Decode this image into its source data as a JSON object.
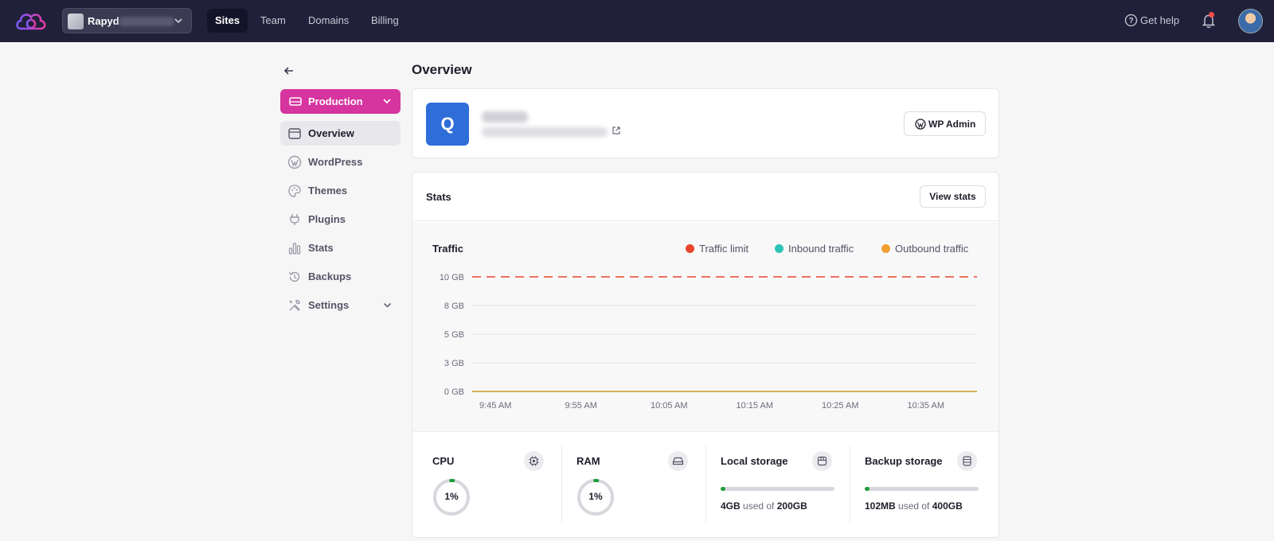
{
  "topbar": {
    "workspace": "Rapyd",
    "nav": [
      "Sites",
      "Team",
      "Domains",
      "Billing"
    ],
    "help": "Get help"
  },
  "sidebar": {
    "environment": "Production",
    "items": [
      {
        "label": "Overview",
        "icon": "browser-icon"
      },
      {
        "label": "WordPress",
        "icon": "wordpress-icon"
      },
      {
        "label": "Themes",
        "icon": "palette-icon"
      },
      {
        "label": "Plugins",
        "icon": "plug-icon"
      },
      {
        "label": "Stats",
        "icon": "bar-chart-icon"
      },
      {
        "label": "Backups",
        "icon": "history-icon"
      },
      {
        "label": "Settings",
        "icon": "tools-icon"
      }
    ]
  },
  "main": {
    "title": "Overview",
    "site": {
      "initial": "Q",
      "admin_button": "WP Admin"
    },
    "stats": {
      "title": "Stats",
      "view_button": "View stats"
    }
  },
  "chart_data": {
    "type": "line",
    "title": "Traffic",
    "x": [
      "9:45 AM",
      "9:55 AM",
      "10:05 AM",
      "10:15 AM",
      "10:25 AM",
      "10:35 AM"
    ],
    "ytick_labels": [
      "0 GB",
      "3 GB",
      "5 GB",
      "8 GB",
      "10 GB"
    ],
    "ylim": [
      0,
      10
    ],
    "grid": true,
    "legend_position": "top-right",
    "series": [
      {
        "name": "Traffic limit",
        "color": "#e8452c",
        "style": "dashed",
        "values": [
          10,
          10,
          10,
          10,
          10,
          10
        ]
      },
      {
        "name": "Inbound traffic",
        "color": "#2ec4b6",
        "values": [
          0,
          0,
          0,
          0,
          0,
          0
        ]
      },
      {
        "name": "Outbound traffic",
        "color": "#f0a030",
        "values": [
          0,
          0,
          0,
          0,
          0,
          0
        ]
      }
    ]
  },
  "metrics": {
    "cpu": {
      "label": "CPU",
      "value": "1%",
      "percent": 1
    },
    "ram": {
      "label": "RAM",
      "value": "1%",
      "percent": 1
    },
    "local": {
      "label": "Local storage",
      "used": "4GB",
      "of": "used of",
      "total": "200GB",
      "fraction": 0.02
    },
    "backup": {
      "label": "Backup storage",
      "used": "102MB",
      "of": "used of",
      "total": "400GB",
      "fraction": 0.0003
    }
  }
}
